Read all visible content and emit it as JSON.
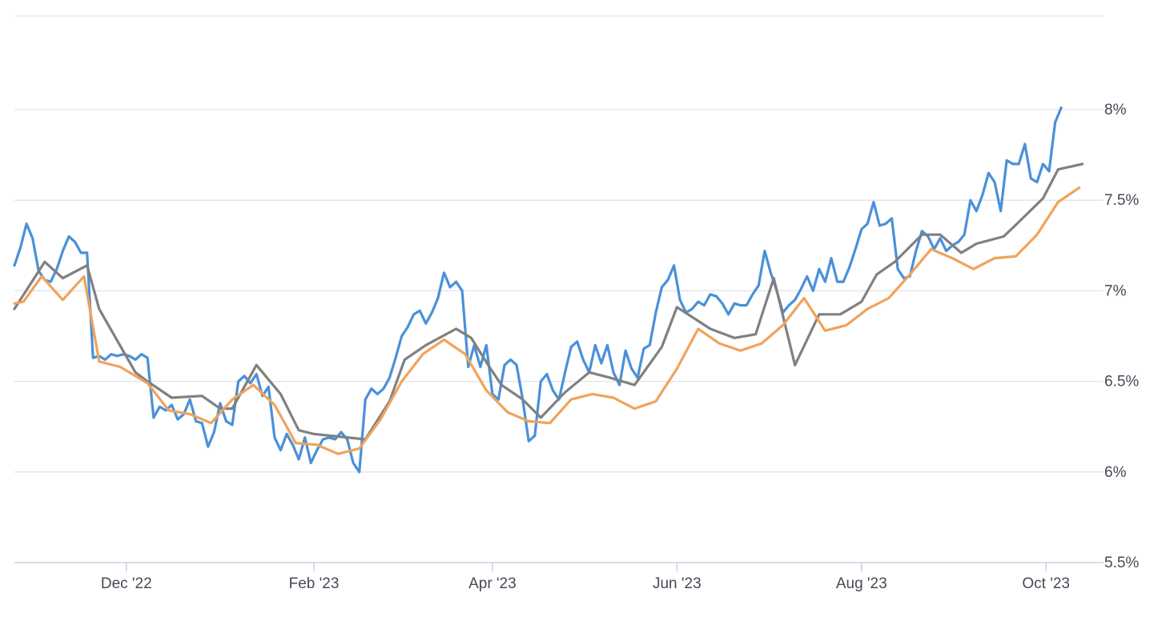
{
  "chart_data": {
    "type": "line",
    "title": "",
    "xlabel": "",
    "ylabel": "",
    "x_range": [
      "2022-10-25",
      "2023-10-20"
    ],
    "ylim": [
      5.5,
      8.25
    ],
    "y_ticks": [
      5.5,
      6,
      6.5,
      7,
      7.5,
      8
    ],
    "y_tick_labels": [
      "5.5%",
      "6%",
      "6.5%",
      "7%",
      "7.5%",
      "8%"
    ],
    "y_axis_position": "right",
    "x_ticks": [
      {
        "date": "2022-12-01",
        "label": "Dec '22"
      },
      {
        "date": "2023-02-01",
        "label": "Feb '23"
      },
      {
        "date": "2023-04-01",
        "label": "Apr '23"
      },
      {
        "date": "2023-06-01",
        "label": "Jun '23"
      },
      {
        "date": "2023-08-01",
        "label": "Aug '23"
      },
      {
        "date": "2023-10-01",
        "label": "Oct '23"
      }
    ],
    "grid": true,
    "legend": "none",
    "series": [
      {
        "color": "#4a90d9",
        "points": [
          [
            "2022-10-25",
            7.14
          ],
          [
            "2022-10-27",
            7.24
          ],
          [
            "2022-10-29",
            7.37
          ],
          [
            "2022-10-31",
            7.29
          ],
          [
            "2022-11-02",
            7.11
          ],
          [
            "2022-11-04",
            7.06
          ],
          [
            "2022-11-06",
            7.05
          ],
          [
            "2022-11-08",
            7.12
          ],
          [
            "2022-11-10",
            7.22
          ],
          [
            "2022-11-12",
            7.3
          ],
          [
            "2022-11-14",
            7.27
          ],
          [
            "2022-11-16",
            7.21
          ],
          [
            "2022-11-18",
            7.21
          ],
          [
            "2022-11-20",
            6.63
          ],
          [
            "2022-11-22",
            6.64
          ],
          [
            "2022-11-24",
            6.62
          ],
          [
            "2022-11-26",
            6.65
          ],
          [
            "2022-11-28",
            6.64
          ],
          [
            "2022-11-30",
            6.65
          ],
          [
            "2022-12-02",
            6.64
          ],
          [
            "2022-12-04",
            6.62
          ],
          [
            "2022-12-06",
            6.65
          ],
          [
            "2022-12-08",
            6.63
          ],
          [
            "2022-12-10",
            6.3
          ],
          [
            "2022-12-12",
            6.36
          ],
          [
            "2022-12-14",
            6.34
          ],
          [
            "2022-12-16",
            6.37
          ],
          [
            "2022-12-18",
            6.29
          ],
          [
            "2022-12-20",
            6.32
          ],
          [
            "2022-12-22",
            6.4
          ],
          [
            "2022-12-24",
            6.28
          ],
          [
            "2022-12-26",
            6.27
          ],
          [
            "2022-12-28",
            6.14
          ],
          [
            "2022-12-30",
            6.22
          ],
          [
            "2023-01-01",
            6.38
          ],
          [
            "2023-01-03",
            6.28
          ],
          [
            "2023-01-05",
            6.26
          ],
          [
            "2023-01-07",
            6.5
          ],
          [
            "2023-01-09",
            6.53
          ],
          [
            "2023-01-11",
            6.49
          ],
          [
            "2023-01-13",
            6.54
          ],
          [
            "2023-01-15",
            6.42
          ],
          [
            "2023-01-17",
            6.47
          ],
          [
            "2023-01-19",
            6.19
          ],
          [
            "2023-01-21",
            6.12
          ],
          [
            "2023-01-23",
            6.21
          ],
          [
            "2023-01-25",
            6.15
          ],
          [
            "2023-01-27",
            6.07
          ],
          [
            "2023-01-29",
            6.19
          ],
          [
            "2023-01-31",
            6.05
          ],
          [
            "2023-02-02",
            6.12
          ],
          [
            "2023-02-04",
            6.18
          ],
          [
            "2023-02-06",
            6.19
          ],
          [
            "2023-02-08",
            6.18
          ],
          [
            "2023-02-10",
            6.22
          ],
          [
            "2023-02-12",
            6.18
          ],
          [
            "2023-02-14",
            6.05
          ],
          [
            "2023-02-16",
            6.0
          ],
          [
            "2023-02-18",
            6.4
          ],
          [
            "2023-02-20",
            6.46
          ],
          [
            "2023-02-22",
            6.43
          ],
          [
            "2023-02-24",
            6.46
          ],
          [
            "2023-02-26",
            6.52
          ],
          [
            "2023-02-28",
            6.63
          ],
          [
            "2023-03-02",
            6.75
          ],
          [
            "2023-03-04",
            6.8
          ],
          [
            "2023-03-06",
            6.87
          ],
          [
            "2023-03-08",
            6.89
          ],
          [
            "2023-03-10",
            6.82
          ],
          [
            "2023-03-12",
            6.88
          ],
          [
            "2023-03-14",
            6.96
          ],
          [
            "2023-03-16",
            7.1
          ],
          [
            "2023-03-18",
            7.02
          ],
          [
            "2023-03-20",
            7.05
          ],
          [
            "2023-03-22",
            7.0
          ],
          [
            "2023-03-24",
            6.58
          ],
          [
            "2023-03-26",
            6.7
          ],
          [
            "2023-03-28",
            6.58
          ],
          [
            "2023-03-30",
            6.7
          ],
          [
            "2023-04-01",
            6.43
          ],
          [
            "2023-04-03",
            6.4
          ],
          [
            "2023-04-05",
            6.59
          ],
          [
            "2023-04-07",
            6.62
          ],
          [
            "2023-04-09",
            6.59
          ],
          [
            "2023-04-11",
            6.4
          ],
          [
            "2023-04-13",
            6.17
          ],
          [
            "2023-04-15",
            6.2
          ],
          [
            "2023-04-17",
            6.5
          ],
          [
            "2023-04-19",
            6.54
          ],
          [
            "2023-04-21",
            6.45
          ],
          [
            "2023-04-23",
            6.4
          ],
          [
            "2023-04-25",
            6.55
          ],
          [
            "2023-04-27",
            6.69
          ],
          [
            "2023-04-29",
            6.72
          ],
          [
            "2023-05-01",
            6.62
          ],
          [
            "2023-05-03",
            6.55
          ],
          [
            "2023-05-05",
            6.7
          ],
          [
            "2023-05-07",
            6.6
          ],
          [
            "2023-05-09",
            6.7
          ],
          [
            "2023-05-11",
            6.55
          ],
          [
            "2023-05-13",
            6.48
          ],
          [
            "2023-05-15",
            6.67
          ],
          [
            "2023-05-17",
            6.57
          ],
          [
            "2023-05-19",
            6.52
          ],
          [
            "2023-05-21",
            6.68
          ],
          [
            "2023-05-23",
            6.7
          ],
          [
            "2023-05-25",
            6.88
          ],
          [
            "2023-05-27",
            7.02
          ],
          [
            "2023-05-29",
            7.06
          ],
          [
            "2023-05-31",
            7.14
          ],
          [
            "2023-06-02",
            6.95
          ],
          [
            "2023-06-04",
            6.88
          ],
          [
            "2023-06-06",
            6.9
          ],
          [
            "2023-06-08",
            6.94
          ],
          [
            "2023-06-10",
            6.92
          ],
          [
            "2023-06-12",
            6.98
          ],
          [
            "2023-06-14",
            6.97
          ],
          [
            "2023-06-16",
            6.93
          ],
          [
            "2023-06-18",
            6.87
          ],
          [
            "2023-06-20",
            6.93
          ],
          [
            "2023-06-22",
            6.92
          ],
          [
            "2023-06-24",
            6.92
          ],
          [
            "2023-06-26",
            6.98
          ],
          [
            "2023-06-28",
            7.03
          ],
          [
            "2023-06-30",
            7.22
          ],
          [
            "2023-07-02",
            7.1
          ],
          [
            "2023-07-04",
            7.0
          ],
          [
            "2023-07-06",
            6.88
          ],
          [
            "2023-07-08",
            6.92
          ],
          [
            "2023-07-10",
            6.95
          ],
          [
            "2023-07-12",
            7.01
          ],
          [
            "2023-07-14",
            7.08
          ],
          [
            "2023-07-16",
            7.0
          ],
          [
            "2023-07-18",
            7.12
          ],
          [
            "2023-07-20",
            7.05
          ],
          [
            "2023-07-22",
            7.18
          ],
          [
            "2023-07-24",
            7.05
          ],
          [
            "2023-07-26",
            7.05
          ],
          [
            "2023-07-28",
            7.13
          ],
          [
            "2023-07-30",
            7.23
          ],
          [
            "2023-08-01",
            7.34
          ],
          [
            "2023-08-03",
            7.37
          ],
          [
            "2023-08-05",
            7.49
          ],
          [
            "2023-08-07",
            7.36
          ],
          [
            "2023-08-09",
            7.37
          ],
          [
            "2023-08-11",
            7.4
          ],
          [
            "2023-08-13",
            7.12
          ],
          [
            "2023-08-15",
            7.07
          ],
          [
            "2023-08-17",
            7.08
          ],
          [
            "2023-08-19",
            7.22
          ],
          [
            "2023-08-21",
            7.33
          ],
          [
            "2023-08-23",
            7.3
          ],
          [
            "2023-08-25",
            7.23
          ],
          [
            "2023-08-27",
            7.29
          ],
          [
            "2023-08-29",
            7.22
          ],
          [
            "2023-08-31",
            7.25
          ],
          [
            "2023-09-02",
            7.27
          ],
          [
            "2023-09-04",
            7.31
          ],
          [
            "2023-09-06",
            7.5
          ],
          [
            "2023-09-08",
            7.44
          ],
          [
            "2023-09-10",
            7.53
          ],
          [
            "2023-09-12",
            7.65
          ],
          [
            "2023-09-14",
            7.6
          ],
          [
            "2023-09-16",
            7.44
          ],
          [
            "2023-09-18",
            7.72
          ],
          [
            "2023-09-20",
            7.7
          ],
          [
            "2023-09-22",
            7.7
          ],
          [
            "2023-09-24",
            7.81
          ],
          [
            "2023-09-26",
            7.62
          ],
          [
            "2023-09-28",
            7.6
          ],
          [
            "2023-09-30",
            7.7
          ],
          [
            "2023-10-02",
            7.66
          ],
          [
            "2023-10-04",
            7.93
          ],
          [
            "2023-10-06",
            8.01
          ]
        ]
      },
      {
        "color": "#808080",
        "points": [
          [
            "2022-10-25",
            6.9
          ],
          [
            "2022-11-04",
            7.16
          ],
          [
            "2022-11-10",
            7.07
          ],
          [
            "2022-11-18",
            7.14
          ],
          [
            "2022-11-22",
            6.9
          ],
          [
            "2022-12-04",
            6.55
          ],
          [
            "2022-12-08",
            6.5
          ],
          [
            "2022-12-16",
            6.41
          ],
          [
            "2022-12-26",
            6.42
          ],
          [
            "2023-01-01",
            6.35
          ],
          [
            "2023-01-05",
            6.35
          ],
          [
            "2023-01-13",
            6.59
          ],
          [
            "2023-01-21",
            6.43
          ],
          [
            "2023-01-27",
            6.23
          ],
          [
            "2023-02-01",
            6.21
          ],
          [
            "2023-02-18",
            6.18
          ],
          [
            "2023-02-26",
            6.39
          ],
          [
            "2023-03-03",
            6.62
          ],
          [
            "2023-03-10",
            6.7
          ],
          [
            "2023-03-20",
            6.79
          ],
          [
            "2023-03-25",
            6.74
          ],
          [
            "2023-03-31",
            6.58
          ],
          [
            "2023-04-04",
            6.48
          ],
          [
            "2023-04-11",
            6.4
          ],
          [
            "2023-04-17",
            6.3
          ],
          [
            "2023-04-25",
            6.44
          ],
          [
            "2023-05-03",
            6.55
          ],
          [
            "2023-05-10",
            6.52
          ],
          [
            "2023-05-18",
            6.48
          ],
          [
            "2023-05-27",
            6.69
          ],
          [
            "2023-06-01",
            6.91
          ],
          [
            "2023-06-12",
            6.79
          ],
          [
            "2023-06-20",
            6.74
          ],
          [
            "2023-06-27",
            6.76
          ],
          [
            "2023-07-03",
            7.07
          ],
          [
            "2023-07-10",
            6.59
          ],
          [
            "2023-07-18",
            6.87
          ],
          [
            "2023-07-25",
            6.87
          ],
          [
            "2023-08-01",
            6.94
          ],
          [
            "2023-08-06",
            7.09
          ],
          [
            "2023-08-12",
            7.16
          ],
          [
            "2023-08-21",
            7.31
          ],
          [
            "2023-08-27",
            7.31
          ],
          [
            "2023-09-03",
            7.21
          ],
          [
            "2023-09-08",
            7.26
          ],
          [
            "2023-09-17",
            7.3
          ],
          [
            "2023-09-22",
            7.38
          ],
          [
            "2023-09-30",
            7.51
          ],
          [
            "2023-10-05",
            7.67
          ],
          [
            "2023-10-13",
            7.7
          ]
        ]
      },
      {
        "color": "#f0a35c",
        "points": [
          [
            "2022-10-25",
            6.93
          ],
          [
            "2022-10-28",
            6.94
          ],
          [
            "2022-11-03",
            7.08
          ],
          [
            "2022-11-10",
            6.95
          ],
          [
            "2022-11-17",
            7.08
          ],
          [
            "2022-11-22",
            6.61
          ],
          [
            "2022-11-29",
            6.58
          ],
          [
            "2022-12-08",
            6.49
          ],
          [
            "2022-12-15",
            6.34
          ],
          [
            "2022-12-22",
            6.32
          ],
          [
            "2022-12-29",
            6.27
          ],
          [
            "2023-01-05",
            6.4
          ],
          [
            "2023-01-12",
            6.48
          ],
          [
            "2023-01-19",
            6.37
          ],
          [
            "2023-01-26",
            6.16
          ],
          [
            "2023-02-02",
            6.15
          ],
          [
            "2023-02-09",
            6.1
          ],
          [
            "2023-02-16",
            6.13
          ],
          [
            "2023-02-23",
            6.29
          ],
          [
            "2023-03-02",
            6.5
          ],
          [
            "2023-03-09",
            6.65
          ],
          [
            "2023-03-16",
            6.73
          ],
          [
            "2023-03-23",
            6.65
          ],
          [
            "2023-03-30",
            6.45
          ],
          [
            "2023-04-06",
            6.33
          ],
          [
            "2023-04-13",
            6.28
          ],
          [
            "2023-04-20",
            6.27
          ],
          [
            "2023-04-27",
            6.4
          ],
          [
            "2023-05-04",
            6.43
          ],
          [
            "2023-05-11",
            6.41
          ],
          [
            "2023-05-18",
            6.35
          ],
          [
            "2023-05-25",
            6.39
          ],
          [
            "2023-06-01",
            6.57
          ],
          [
            "2023-06-08",
            6.79
          ],
          [
            "2023-06-15",
            6.71
          ],
          [
            "2023-06-22",
            6.67
          ],
          [
            "2023-06-29",
            6.71
          ],
          [
            "2023-07-06",
            6.81
          ],
          [
            "2023-07-13",
            6.96
          ],
          [
            "2023-07-20",
            6.78
          ],
          [
            "2023-07-27",
            6.81
          ],
          [
            "2023-08-03",
            6.9
          ],
          [
            "2023-08-10",
            6.96
          ],
          [
            "2023-08-17",
            7.09
          ],
          [
            "2023-08-24",
            7.23
          ],
          [
            "2023-08-31",
            7.18
          ],
          [
            "2023-09-07",
            7.12
          ],
          [
            "2023-09-14",
            7.18
          ],
          [
            "2023-09-21",
            7.19
          ],
          [
            "2023-09-28",
            7.31
          ],
          [
            "2023-10-05",
            7.49
          ],
          [
            "2023-10-12",
            7.57
          ]
        ]
      }
    ]
  }
}
